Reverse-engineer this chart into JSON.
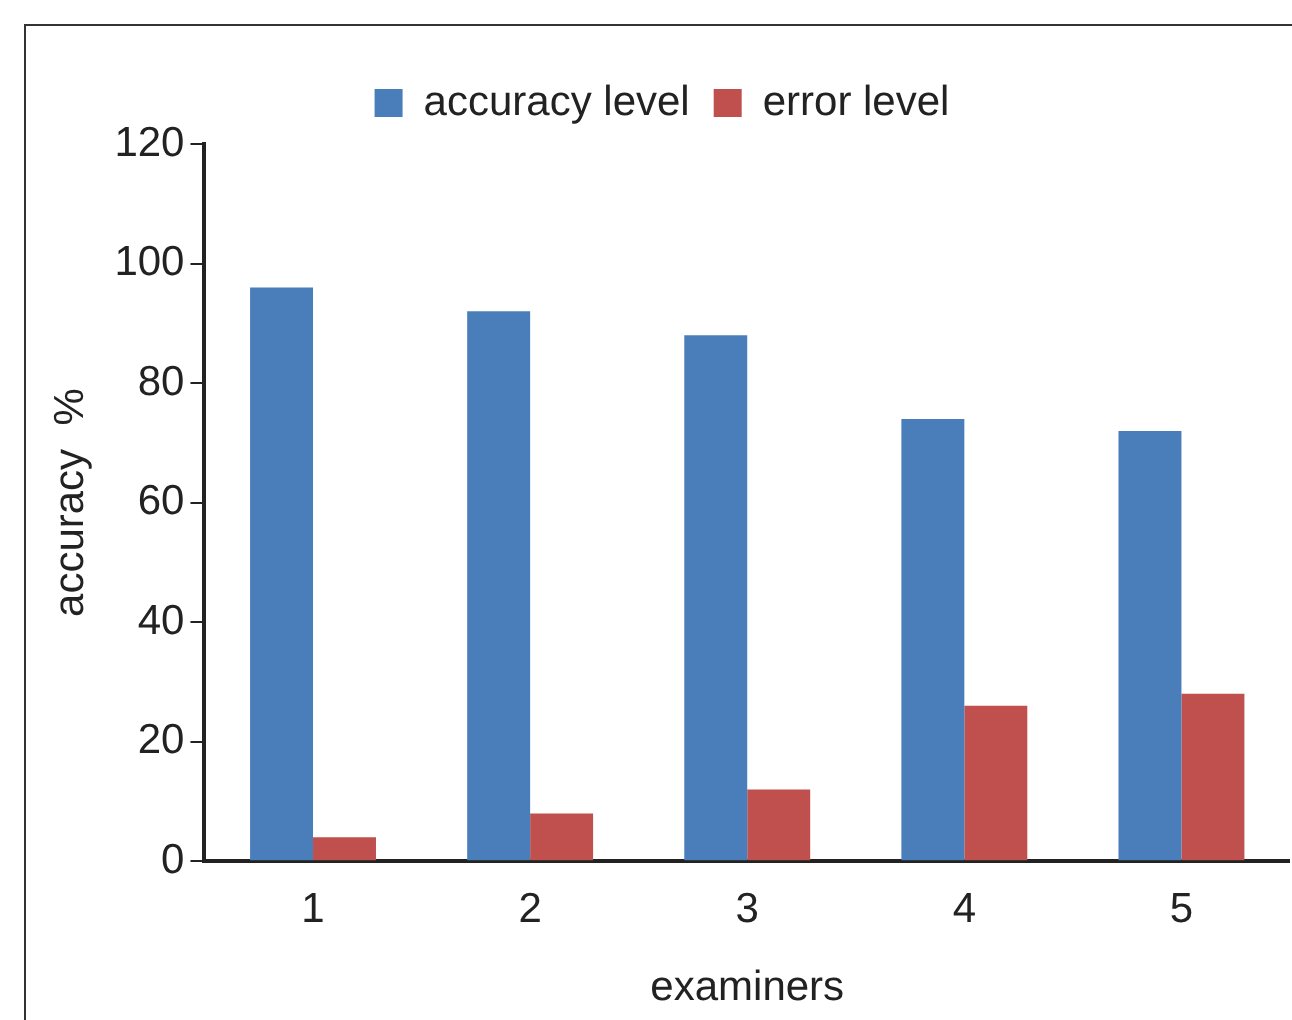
{
  "chart_data": {
    "type": "bar",
    "xlabel": "examiners",
    "ylabel": "accuracy  %",
    "categories": [
      "1",
      "2",
      "3",
      "4",
      "5"
    ],
    "series": [
      {
        "name": "accuracy level",
        "color": "#4a7ebb",
        "values": [
          96,
          92,
          88,
          74,
          72
        ]
      },
      {
        "name": "error level",
        "color": "#c0504d",
        "values": [
          4,
          8,
          12,
          26,
          28
        ]
      }
    ],
    "ylim": [
      0,
      120
    ],
    "yticks": [
      0,
      20,
      40,
      60,
      80,
      100,
      120
    ],
    "grid": false,
    "legend": "top"
  }
}
